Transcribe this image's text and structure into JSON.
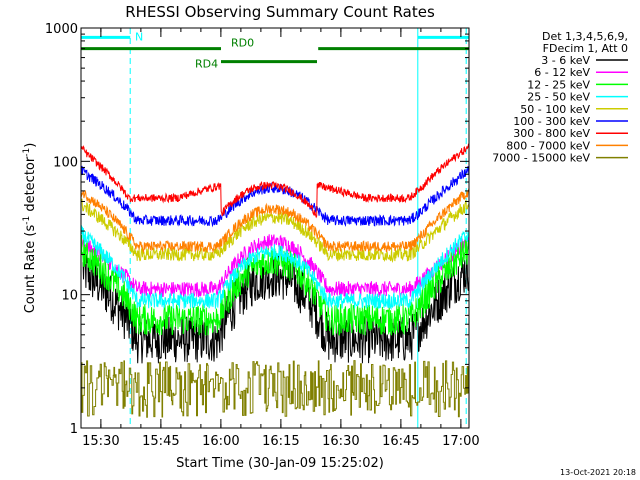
{
  "chart_data": {
    "type": "line",
    "title": "RHESSI Observing Summary Count Rates",
    "xlabel": "Start Time (30-Jan-09 15:25:02)",
    "ylabel": "Count Rate (s",
    "ylabel_sup1": "-1",
    "ylabel_mid": " detector",
    "ylabel_sup2": "-1",
    "ylabel_end": ")",
    "y_scale": "log",
    "ylim": [
      1,
      1000
    ],
    "xlim_minutes": [
      0,
      97
    ],
    "x_ticks": [
      {
        "label": "15:30",
        "minutes": 4.97
      },
      {
        "label": "15:45",
        "minutes": 19.97
      },
      {
        "label": "16:00",
        "minutes": 34.97
      },
      {
        "label": "16:15",
        "minutes": 49.97
      },
      {
        "label": "16:30",
        "minutes": 64.97
      },
      {
        "label": "16:45",
        "minutes": 79.97
      },
      {
        "label": "17:00",
        "minutes": 94.97
      }
    ],
    "y_ticks": [
      {
        "label": "1",
        "value": 1
      },
      {
        "label": "10",
        "value": 10
      },
      {
        "label": "100",
        "value": 100
      },
      {
        "label": "1000",
        "value": 1000
      }
    ],
    "legend": {
      "header1": "Det 1,3,4,5,6,9,",
      "header2": "FDecim 1, Att 0",
      "placement": "right"
    },
    "series": [
      {
        "name": "3 - 6 keV",
        "color": "#000000",
        "shape": "a",
        "base": 4.6,
        "peak": 14,
        "edge": 16,
        "jitter": 0.18,
        "xmin": 0.5
      },
      {
        "name": "6 - 12 keV",
        "color": "#ff00ff",
        "shape": "a",
        "base": 11,
        "peak": 25,
        "edge": 25,
        "jitter": 0.06
      },
      {
        "name": "12 - 25 keV",
        "color": "#00ff00",
        "shape": "a",
        "base": 6.5,
        "peak": 18,
        "edge": 22,
        "jitter": 0.12
      },
      {
        "name": "25 - 50 keV",
        "color": "#00ffff",
        "shape": "a",
        "base": 9,
        "peak": 21,
        "edge": 29,
        "jitter": 0.06
      },
      {
        "name": "50 - 100 keV",
        "color": "#cccc00",
        "shape": "a",
        "base": 20,
        "peak": 38,
        "edge": 48,
        "jitter": 0.05
      },
      {
        "name": "100 - 300 keV",
        "color": "#0000ff",
        "shape": "a",
        "base": 36,
        "peak": 63,
        "edge": 86,
        "jitter": 0.04
      },
      {
        "name": "300 - 800 keV",
        "color": "#ff0000",
        "shape": "b",
        "base": 53,
        "peak": 66,
        "edge": 128,
        "jitter": 0.03
      },
      {
        "name": "800 - 7000 keV",
        "color": "#ff8000",
        "shape": "a",
        "base": 23,
        "peak": 44,
        "edge": 60,
        "jitter": 0.04
      },
      {
        "name": "7000 - 15000 keV",
        "color": "#808000",
        "shape": "c",
        "base": 1,
        "peak": 3,
        "edge": 3,
        "jitter": 0
      }
    ],
    "attenuator_bars": [
      {
        "label": "N",
        "color": "#00ffff",
        "start": 0.0,
        "end": 12.3,
        "level": 850,
        "label_at": 13.5
      },
      {
        "label": "",
        "color": "#00ffff",
        "start": 84.2,
        "end": 97.0,
        "level": 850,
        "label_at": 0
      }
    ],
    "decimation_bars": [
      {
        "label": "RD0",
        "color": "#008000",
        "start": 0.0,
        "end": 35.0,
        "level": 700,
        "label_at": 37.5,
        "label_above": true
      },
      {
        "label": "RD4",
        "color": "#008000",
        "start": 35.0,
        "end": 59.0,
        "level": 560,
        "label_at": 28.5,
        "label_above": false
      },
      {
        "label": "",
        "color": "#008000",
        "start": 59.3,
        "end": 97.0,
        "level": 700,
        "label_at": 0,
        "label_above": true
      }
    ],
    "eclipse_lines": [
      {
        "minutes": 12.3,
        "style": "dashed"
      },
      {
        "minutes": 84.2,
        "style": "solid"
      },
      {
        "minutes": 96.3,
        "style": "dashed"
      }
    ],
    "footer_date": "13-Oct-2021 20:18"
  }
}
